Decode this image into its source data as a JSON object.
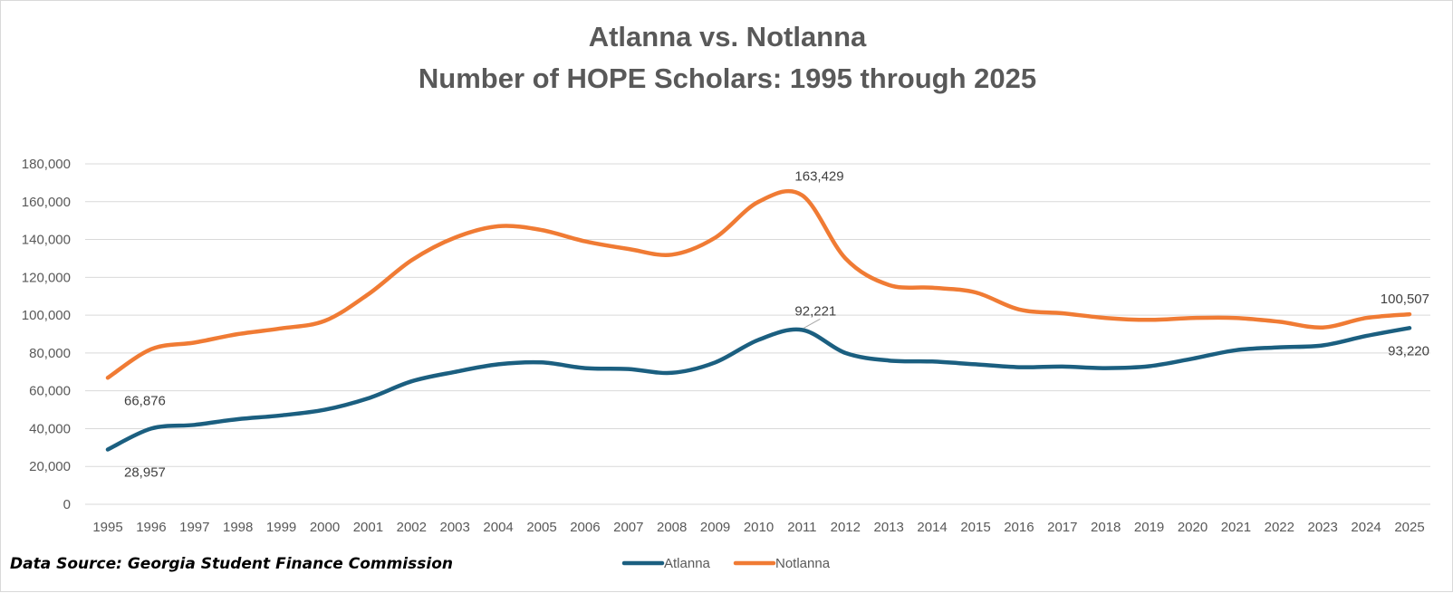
{
  "chart_data": {
    "type": "line",
    "title_lines": [
      "Atlanna vs. Notlanna",
      "Number of HOPE Scholars: 1995 through 2025"
    ],
    "x": [
      "1995",
      "1996",
      "1997",
      "1998",
      "1999",
      "2000",
      "2001",
      "2002",
      "2003",
      "2004",
      "2005",
      "2006",
      "2007",
      "2008",
      "2009",
      "2010",
      "2011",
      "2012",
      "2013",
      "2014",
      "2015",
      "2016",
      "2017",
      "2018",
      "2019",
      "2020",
      "2021",
      "2022",
      "2023",
      "2024",
      "2025"
    ],
    "ylim": [
      0,
      180000
    ],
    "y_ticks": [
      0,
      20000,
      40000,
      60000,
      80000,
      100000,
      120000,
      140000,
      160000,
      180000
    ],
    "y_tick_labels": [
      "0",
      "20,000",
      "40,000",
      "60,000",
      "80,000",
      "100,000",
      "120,000",
      "140,000",
      "160,000",
      "180,000"
    ],
    "grid": true,
    "legend_position": "bottom",
    "series": [
      {
        "name": "Atlanna",
        "color": "#1b5f80",
        "values": [
          28957,
          40000,
          42000,
          45000,
          47000,
          50000,
          56000,
          65000,
          70000,
          74000,
          75000,
          72000,
          71500,
          69500,
          75000,
          87000,
          92221,
          80000,
          76000,
          75500,
          74000,
          72500,
          72800,
          72000,
          73000,
          77000,
          81500,
          83000,
          84000,
          89000,
          93220
        ]
      },
      {
        "name": "Notlanna",
        "color": "#f07b34",
        "values": [
          66876,
          82000,
          85500,
          90000,
          93000,
          97000,
          111000,
          129000,
          141000,
          147000,
          145000,
          139000,
          135000,
          132000,
          141000,
          160000,
          163429,
          130000,
          116000,
          114500,
          112000,
          103000,
          101000,
          98500,
          97500,
          98500,
          98500,
          96500,
          93500,
          98500,
          100507
        ]
      }
    ],
    "data_labels": [
      {
        "series": "Atlanna",
        "index": 0,
        "text": "28,957"
      },
      {
        "series": "Atlanna",
        "index": 16,
        "text": "92,221"
      },
      {
        "series": "Atlanna",
        "index": 30,
        "text": "93,220"
      },
      {
        "series": "Notlanna",
        "index": 0,
        "text": "66,876"
      },
      {
        "series": "Notlanna",
        "index": 16,
        "text": "163,429"
      },
      {
        "series": "Notlanna",
        "index": 30,
        "text": "100,507"
      }
    ]
  },
  "source_note": "Data Source: Georgia Student Finance Commission"
}
